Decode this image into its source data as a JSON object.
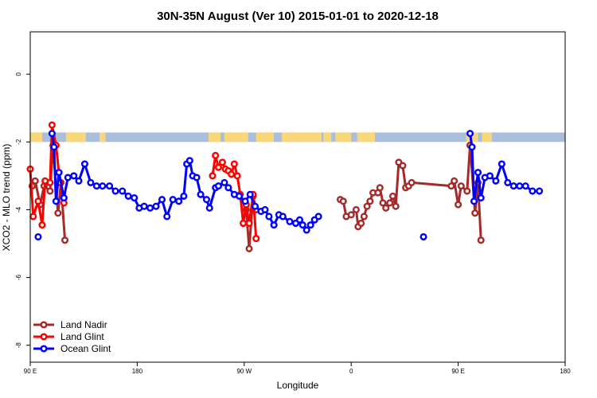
{
  "chart_data": {
    "type": "line",
    "title": "30N-35N August (Ver 10)   2015-01-01 to 2020-12-18",
    "xlabel": "Longitude",
    "ylabel": "XCO2 - MLO trend (ppm)",
    "xlim": [
      -90,
      180
    ],
    "ylim": [
      -8.5,
      1.25
    ],
    "x_ticks": [
      {
        "value": -90,
        "label": "90 E"
      },
      {
        "value": -36,
        "label": "180"
      },
      {
        "value": 18,
        "label": "90 W"
      },
      {
        "value": 72,
        "label": "0"
      },
      {
        "value": 126,
        "label": "90 E"
      },
      {
        "value": 180,
        "label": "180"
      }
    ],
    "y_ticks": [
      {
        "value": 0,
        "label": "0"
      },
      {
        "value": -2,
        "label": "-2"
      },
      {
        "value": -4,
        "label": "-4"
      },
      {
        "value": -6,
        "label": "-6"
      },
      {
        "value": -8,
        "label": "-8"
      }
    ],
    "grid": false,
    "legend_position": "bottom-left",
    "surface_band": {
      "y_range": [
        -2.0,
        -1.72
      ],
      "ocean_color": "#a9bfdd",
      "land_color": "#fad879",
      "land_segments": [
        [
          -90,
          -84
        ],
        [
          -72,
          -62
        ],
        [
          -55,
          -52
        ],
        [
          0,
          6
        ],
        [
          8,
          20
        ],
        [
          24,
          33
        ],
        [
          37,
          57
        ],
        [
          58,
          62
        ],
        [
          64,
          72
        ],
        [
          75,
          84
        ],
        [
          130,
          136
        ],
        [
          138,
          143
        ]
      ]
    },
    "series": [
      {
        "name": "Land Nadir",
        "color": "#a52a2a",
        "segments": [
          [
            [
              -89,
              -3.3
            ],
            [
              -87.5,
              -3.15
            ],
            [
              -85,
              -3.85
            ],
            [
              -83,
              -3.3
            ],
            [
              -80,
              -3.45
            ],
            [
              -78.5,
              -2.1
            ],
            [
              -76,
              -4.1
            ],
            [
              -74.5,
              -3.2
            ],
            [
              -72.5,
              -4.9
            ]
          ],
          [
            [
              19,
              -4.0
            ],
            [
              20.5,
              -5.15
            ],
            [
              22.5,
              -3.6
            ],
            [
              24,
              -4.0
            ]
          ],
          [
            [
              66.5,
              -3.7
            ],
            [
              68,
              -3.75
            ],
            [
              69.5,
              -4.2
            ],
            [
              72,
              -4.15
            ],
            [
              74.5,
              -4.0
            ],
            [
              75.5,
              -4.5
            ],
            [
              77,
              -4.4
            ],
            [
              78.5,
              -4.2
            ],
            [
              80,
              -3.9
            ],
            [
              81.5,
              -3.75
            ],
            [
              83,
              -3.5
            ],
            [
              85.5,
              -3.5
            ],
            [
              86.5,
              -3.35
            ],
            [
              88,
              -3.8
            ],
            [
              89.5,
              -3.95
            ],
            [
              91.5,
              -3.8
            ],
            [
              93,
              -3.6
            ],
            [
              94.5,
              -3.9
            ],
            [
              96,
              -2.6
            ],
            [
              98,
              -2.7
            ],
            [
              99.5,
              -3.35
            ],
            [
              101,
              -3.3
            ],
            [
              102.5,
              -3.2
            ],
            [
              122.5,
              -3.3
            ],
            [
              124,
              -3.15
            ],
            [
              126,
              -3.85
            ],
            [
              127.5,
              -3.3
            ],
            [
              130.5,
              -3.45
            ],
            [
              132,
              -2.1
            ],
            [
              134.5,
              -4.1
            ],
            [
              136,
              -3.2
            ],
            [
              137.5,
              -4.9
            ]
          ]
        ]
      },
      {
        "name": "Land Glint",
        "color": "#ff0000",
        "segments": [
          [
            [
              -90,
              -2.8
            ],
            [
              -88.5,
              -4.2
            ],
            [
              -86,
              -3.75
            ],
            [
              -84,
              -4.45
            ],
            [
              -82.5,
              -3.15
            ],
            [
              -80,
              -3.2
            ],
            [
              -79,
              -1.5
            ],
            [
              -77,
              -2.1
            ],
            [
              -75,
              -3.2
            ],
            [
              -73,
              -3.8
            ]
          ],
          [
            [
              2,
              -3.0
            ],
            [
              3.5,
              -2.4
            ],
            [
              5,
              -2.75
            ],
            [
              7,
              -2.6
            ],
            [
              8.5,
              -2.8
            ],
            [
              10,
              -2.85
            ],
            [
              11.5,
              -2.95
            ],
            [
              13,
              -2.65
            ],
            [
              14.5,
              -3.0
            ],
            [
              16,
              -3.55
            ],
            [
              17.5,
              -4.4
            ],
            [
              19,
              -3.85
            ],
            [
              20.5,
              -4.4
            ],
            [
              22.5,
              -3.55
            ],
            [
              24,
              -4.85
            ]
          ]
        ]
      },
      {
        "name": "Ocean Glint",
        "color": "#0000ff",
        "segments": [
          [
            [
              -86,
              -4.8
            ]
          ],
          [
            [
              -79,
              -1.75
            ],
            [
              -78,
              -2.15
            ],
            [
              -77,
              -3.75
            ],
            [
              -75.5,
              -2.9
            ],
            [
              -73,
              -3.65
            ],
            [
              -71,
              -3.05
            ],
            [
              -68,
              -3.0
            ],
            [
              -65.5,
              -3.15
            ],
            [
              -62.5,
              -2.65
            ],
            [
              -59.5,
              -3.2
            ],
            [
              -56.5,
              -3.3
            ],
            [
              -53.5,
              -3.3
            ],
            [
              -50,
              -3.3
            ],
            [
              -47,
              -3.45
            ],
            [
              -43.5,
              -3.45
            ],
            [
              -40.5,
              -3.6
            ],
            [
              -37.5,
              -3.65
            ],
            [
              -35,
              -3.95
            ],
            [
              -32.5,
              -3.9
            ],
            [
              -29.5,
              -3.95
            ],
            [
              -26.5,
              -3.9
            ],
            [
              -23.5,
              -3.7
            ],
            [
              -21,
              -4.2
            ],
            [
              -18,
              -3.7
            ],
            [
              -15,
              -3.75
            ],
            [
              -12.5,
              -3.6
            ],
            [
              -11,
              -2.65
            ],
            [
              -9.5,
              -2.55
            ],
            [
              -8,
              -3.0
            ],
            [
              -6,
              -3.05
            ],
            [
              -4,
              -3.55
            ],
            [
              -1,
              -3.7
            ],
            [
              0.5,
              -3.95
            ],
            [
              3.5,
              -3.35
            ],
            [
              5,
              -3.3
            ],
            [
              8,
              -3.2
            ],
            [
              10,
              -3.35
            ],
            [
              13,
              -3.55
            ],
            [
              15.5,
              -3.6
            ],
            [
              18.5,
              -3.75
            ],
            [
              21,
              -3.55
            ],
            [
              23.5,
              -3.9
            ],
            [
              26.5,
              -4.05
            ],
            [
              28.5,
              -4.0
            ],
            [
              30.5,
              -4.2
            ],
            [
              33,
              -4.45
            ],
            [
              35.5,
              -4.15
            ],
            [
              37.5,
              -4.2
            ],
            [
              41,
              -4.35
            ],
            [
              44,
              -4.4
            ],
            [
              46,
              -4.3
            ],
            [
              47.5,
              -4.45
            ],
            [
              49.5,
              -4.6
            ],
            [
              51.5,
              -4.45
            ],
            [
              53.5,
              -4.3
            ],
            [
              55.5,
              -4.2
            ]
          ],
          [
            [
              108.5,
              -4.8
            ]
          ],
          [
            [
              132,
              -1.75
            ],
            [
              133,
              -2.15
            ],
            [
              134,
              -3.75
            ],
            [
              136,
              -2.9
            ],
            [
              137.5,
              -3.65
            ],
            [
              139.5,
              -3.05
            ],
            [
              142,
              -3.0
            ],
            [
              145,
              -3.15
            ],
            [
              148,
              -2.65
            ],
            [
              151,
              -3.2
            ],
            [
              154,
              -3.3
            ],
            [
              157,
              -3.3
            ],
            [
              160,
              -3.3
            ],
            [
              163.5,
              -3.45
            ],
            [
              167,
              -3.45
            ]
          ]
        ]
      }
    ]
  }
}
